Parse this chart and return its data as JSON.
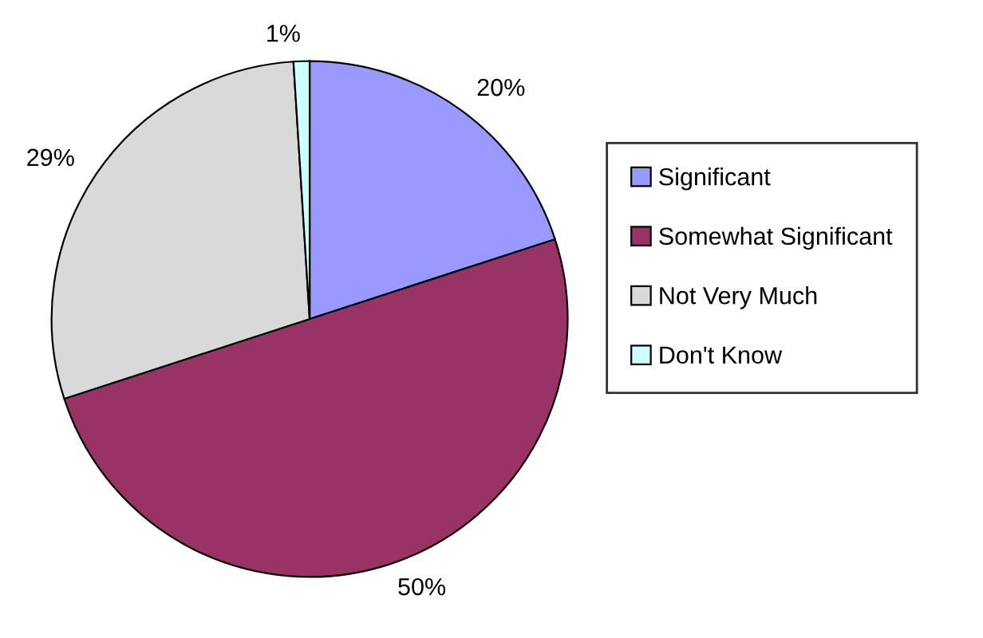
{
  "chart_data": {
    "type": "pie",
    "categories": [
      "Significant",
      "Somewhat Significant",
      "Not Very Much",
      "Don't Know"
    ],
    "values": [
      20,
      50,
      29,
      1
    ],
    "colors": [
      "#9999ff",
      "#993366",
      "#d9d9d9",
      "#ccffff"
    ],
    "value_labels": [
      "20%",
      "50%",
      "29%",
      "1%"
    ],
    "legend": "right"
  }
}
